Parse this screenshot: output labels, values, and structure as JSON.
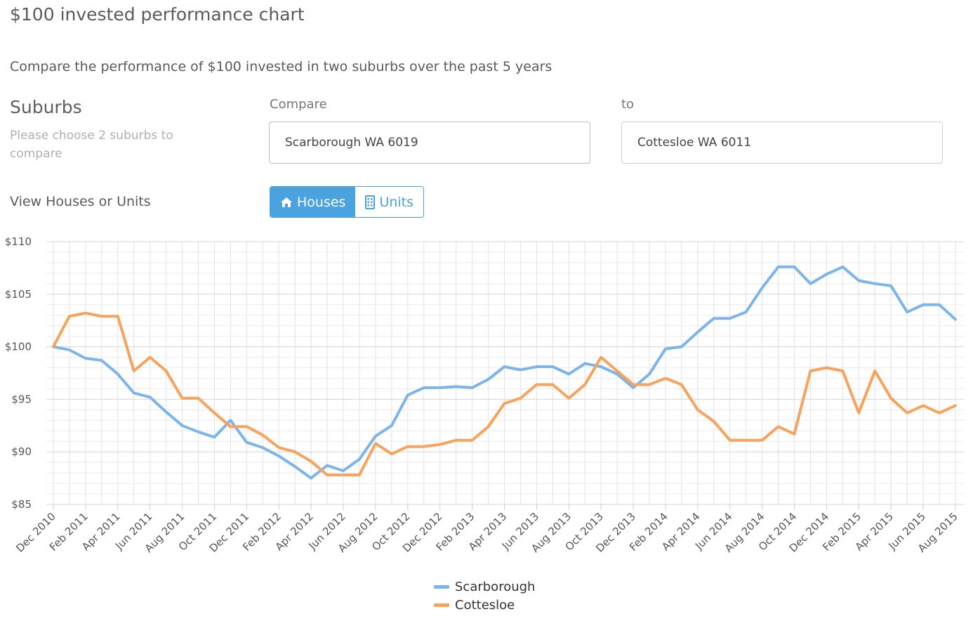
{
  "page": {
    "title": "$100 invested performance chart",
    "subtitle": "Compare the performance of $100 invested in two suburbs over the past 5 years"
  },
  "suburbs": {
    "heading": "Suburbs",
    "hint": "Please choose 2 suburbs to compare",
    "compare_label": "Compare",
    "compare_value": "Scarborough WA 6019",
    "to_label": "to",
    "to_value": "Cottesloe WA 6011"
  },
  "view": {
    "label": "View Houses or Units",
    "houses_label": "Houses",
    "units_label": "Units",
    "selected": "Houses",
    "houses_icon": "home-icon",
    "units_icon": "building-icon"
  },
  "chart_data": {
    "type": "line",
    "title": "",
    "xlabel": "",
    "ylabel": "",
    "ylim": [
      85,
      110
    ],
    "yticks": [
      85,
      90,
      95,
      100,
      105,
      110
    ],
    "ytick_labels": [
      "$85",
      "$90",
      "$95",
      "$100",
      "$105",
      "$110"
    ],
    "grid": true,
    "legend_position": "bottom-center",
    "x": [
      "Dec 2010",
      "Jan 2011",
      "Feb 2011",
      "Mar 2011",
      "Apr 2011",
      "May 2011",
      "Jun 2011",
      "Jul 2011",
      "Aug 2011",
      "Sep 2011",
      "Oct 2011",
      "Nov 2011",
      "Dec 2011",
      "Jan 2012",
      "Feb 2012",
      "Mar 2012",
      "Apr 2012",
      "May 2012",
      "Jun 2012",
      "Jul 2012",
      "Aug 2012",
      "Sep 2012",
      "Oct 2012",
      "Nov 2012",
      "Dec 2012",
      "Jan 2013",
      "Feb 2013",
      "Mar 2013",
      "Apr 2013",
      "May 2013",
      "Jun 2013",
      "Jul 2013",
      "Aug 2013",
      "Sep 2013",
      "Oct 2013",
      "Nov 2013",
      "Dec 2013",
      "Jan 2014",
      "Feb 2014",
      "Mar 2014",
      "Apr 2014",
      "May 2014",
      "Jun 2014",
      "Jul 2014",
      "Aug 2014",
      "Sep 2014",
      "Oct 2014",
      "Nov 2014",
      "Dec 2014",
      "Jan 2015",
      "Feb 2015",
      "Mar 2015",
      "Apr 2015",
      "May 2015",
      "Jun 2015",
      "Jul 2015",
      "Aug 2015"
    ],
    "xtick_labels": [
      "Dec 2010",
      "Feb 2011",
      "Apr 2011",
      "Jun 2011",
      "Aug 2011",
      "Oct 2011",
      "Dec 2011",
      "Feb 2012",
      "Apr 2012",
      "Jun 2012",
      "Aug 2012",
      "Oct 2012",
      "Dec 2012",
      "Feb 2013",
      "Apr 2013",
      "Jun 2013",
      "Aug 2013",
      "Oct 2013",
      "Dec 2013",
      "Feb 2014",
      "Apr 2014",
      "Jun 2014",
      "Aug 2014",
      "Oct 2014",
      "Dec 2014",
      "Feb 2015",
      "Apr 2015",
      "Jun 2015",
      "Aug 2015"
    ],
    "series": [
      {
        "name": "Scarborough",
        "color": "#7cb5ec",
        "values": [
          100.0,
          99.7,
          98.9,
          98.7,
          97.4,
          95.6,
          95.2,
          93.8,
          92.5,
          91.9,
          91.4,
          93.0,
          90.9,
          90.4,
          89.6,
          88.6,
          87.5,
          88.7,
          88.2,
          89.3,
          91.5,
          92.5,
          95.4,
          96.1,
          96.1,
          96.2,
          96.1,
          96.9,
          98.1,
          97.8,
          98.1,
          98.1,
          97.4,
          98.4,
          98.1,
          97.4,
          96.1,
          97.4,
          99.8,
          100.0,
          101.4,
          102.7,
          102.7,
          103.3,
          105.6,
          107.6,
          107.6,
          106.0,
          106.9,
          107.6,
          106.3,
          106.0,
          105.8,
          103.3,
          104.0,
          104.0,
          102.6
        ]
      },
      {
        "name": "Cottesloe",
        "color": "#f7a35c",
        "values": [
          100.0,
          102.9,
          103.2,
          102.9,
          102.9,
          97.7,
          99.0,
          97.7,
          95.1,
          95.1,
          93.7,
          92.4,
          92.4,
          91.6,
          90.4,
          90.0,
          89.1,
          87.8,
          87.8,
          87.8,
          90.8,
          89.8,
          90.5,
          90.5,
          90.7,
          91.1,
          91.1,
          92.4,
          94.6,
          95.1,
          96.4,
          96.4,
          95.1,
          96.4,
          99.0,
          97.7,
          96.4,
          96.4,
          97.0,
          96.4,
          94.0,
          92.9,
          91.1,
          91.1,
          91.1,
          92.4,
          91.7,
          97.7,
          98.0,
          97.7,
          93.7,
          97.7,
          95.1,
          93.7,
          94.4,
          93.7,
          94.4
        ]
      }
    ]
  }
}
